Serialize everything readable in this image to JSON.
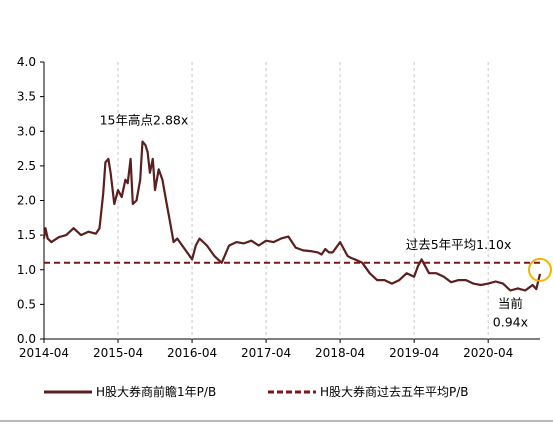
{
  "chart_data": {
    "type": "line",
    "title": "",
    "xlabel": "",
    "ylabel": "",
    "ylim": [
      0,
      4.0
    ],
    "y_ticks": [
      "0.0",
      "0.5",
      "1.0",
      "1.5",
      "2.0",
      "2.5",
      "3.0",
      "3.5",
      "4.0"
    ],
    "x_ticks": [
      "2014-04",
      "2015-04",
      "2016-04",
      "2017-04",
      "2018-04",
      "2019-04",
      "2020-04"
    ],
    "grid": "vertical dashed",
    "legend_position": "bottom",
    "colors": {
      "pb_line": "#5a1f1f",
      "avg_line": "#7a1616",
      "highlight_circle": "#f2b600"
    },
    "series": [
      {
        "name": "H股大券商前瞻1年P/B",
        "style": "solid",
        "x": [
          2014.0,
          2014.02,
          2014.05,
          2014.1,
          2014.2,
          2014.3,
          2014.4,
          2014.5,
          2014.6,
          2014.7,
          2014.75,
          2014.8,
          2014.83,
          2014.87,
          2014.9,
          2014.95,
          2015.0,
          2015.05,
          2015.1,
          2015.13,
          2015.17,
          2015.2,
          2015.25,
          2015.3,
          2015.33,
          2015.37,
          2015.4,
          2015.43,
          2015.47,
          2015.5,
          2015.55,
          2015.6,
          2015.65,
          2015.7,
          2015.75,
          2015.8,
          2015.9,
          2016.0,
          2016.05,
          2016.1,
          2016.2,
          2016.3,
          2016.4,
          2016.5,
          2016.6,
          2016.7,
          2016.8,
          2016.9,
          2017.0,
          2017.1,
          2017.2,
          2017.3,
          2017.4,
          2017.5,
          2017.6,
          2017.7,
          2017.75,
          2017.8,
          2017.85,
          2017.9,
          2018.0,
          2018.1,
          2018.15,
          2018.2,
          2018.3,
          2018.4,
          2018.5,
          2018.6,
          2018.7,
          2018.8,
          2018.9,
          2019.0,
          2019.05,
          2019.1,
          2019.15,
          2019.2,
          2019.3,
          2019.4,
          2019.5,
          2019.6,
          2019.7,
          2019.8,
          2019.9,
          2020.0,
          2020.1,
          2020.2,
          2020.3,
          2020.4,
          2020.5,
          2020.6,
          2020.65,
          2020.7
        ],
        "y": [
          1.45,
          1.6,
          1.45,
          1.4,
          1.47,
          1.5,
          1.6,
          1.5,
          1.55,
          1.52,
          1.6,
          2.1,
          2.55,
          2.6,
          2.4,
          1.95,
          2.15,
          2.05,
          2.3,
          2.25,
          2.6,
          1.95,
          2.0,
          2.3,
          2.85,
          2.8,
          2.7,
          2.4,
          2.6,
          2.15,
          2.45,
          2.3,
          2.0,
          1.7,
          1.4,
          1.45,
          1.3,
          1.15,
          1.35,
          1.45,
          1.35,
          1.2,
          1.1,
          1.35,
          1.4,
          1.38,
          1.42,
          1.35,
          1.42,
          1.4,
          1.45,
          1.48,
          1.32,
          1.28,
          1.27,
          1.25,
          1.22,
          1.3,
          1.25,
          1.25,
          1.4,
          1.2,
          1.17,
          1.15,
          1.1,
          0.95,
          0.85,
          0.85,
          0.8,
          0.85,
          0.95,
          0.9,
          1.05,
          1.15,
          1.05,
          0.95,
          0.95,
          0.9,
          0.82,
          0.85,
          0.85,
          0.8,
          0.78,
          0.8,
          0.83,
          0.8,
          0.7,
          0.73,
          0.7,
          0.78,
          0.72,
          0.94
        ]
      },
      {
        "name": "H股大券商过去五年平均P/B",
        "style": "dashed",
        "x": [
          2014.0,
          2020.7
        ],
        "y": [
          1.1,
          1.1
        ]
      }
    ],
    "annotations": [
      {
        "text": "15年高点2.88x",
        "x": 2015.35,
        "y": 3.1
      },
      {
        "text": "过去5年平均1.10x",
        "x": 2019.6,
        "y": 1.3
      },
      {
        "text": "当前",
        "x": 2020.3,
        "y": 0.45
      },
      {
        "text": "0.94x",
        "x": 2020.3,
        "y": 0.18
      }
    ]
  }
}
